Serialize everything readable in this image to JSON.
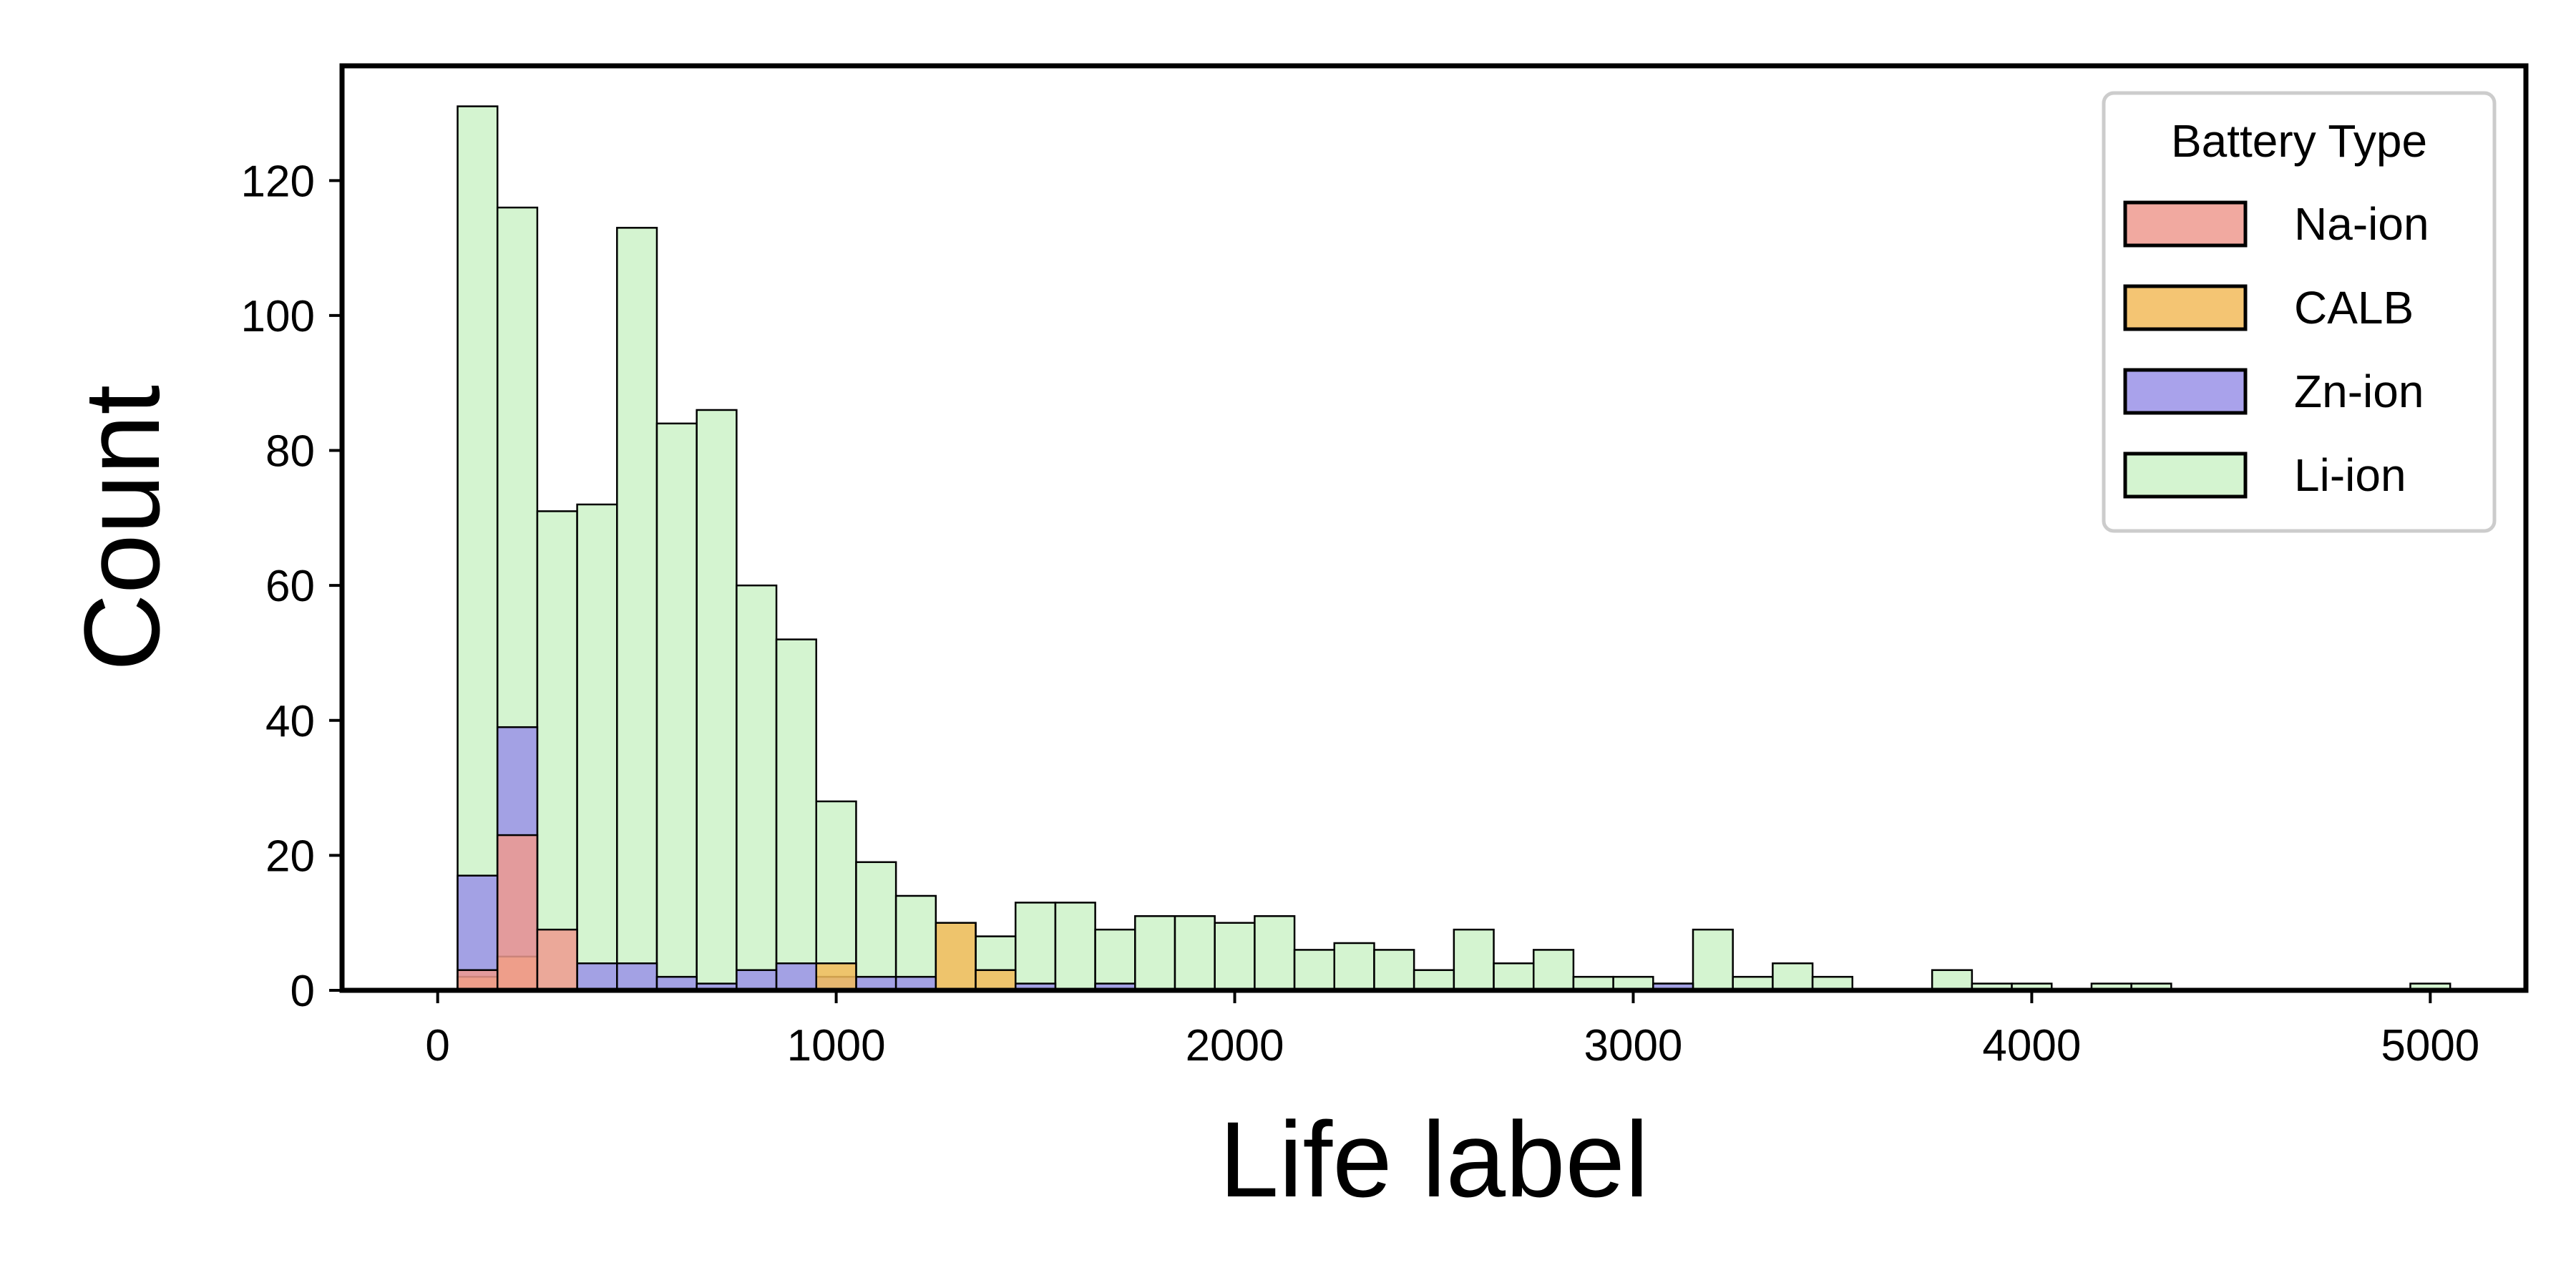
{
  "chart_data": {
    "type": "bar",
    "subtype": "overlaid-histogram",
    "title": "",
    "xlabel": "Life label",
    "ylabel": "Count",
    "xlim": [
      -240,
      5240
    ],
    "ylim": [
      0,
      137
    ],
    "x_ticks": [
      0,
      1000,
      2000,
      3000,
      4000,
      5000
    ],
    "y_ticks": [
      0,
      20,
      40,
      60,
      80,
      100,
      120
    ],
    "grid": false,
    "legend": {
      "title": "Battery Type",
      "position": "top-right"
    },
    "bin_edges": [
      50,
      150,
      250,
      350,
      450,
      550,
      650,
      750,
      850,
      950,
      1050,
      1150,
      1250,
      1350,
      1450,
      1550,
      1650,
      1750,
      1850,
      1950,
      2050,
      2150,
      2250,
      2350,
      2450,
      2550,
      2650,
      2750,
      2850,
      2950,
      3050,
      3150,
      3250,
      3350,
      3450,
      3550,
      3650,
      3750,
      3850,
      3950,
      4050,
      4150,
      4250,
      4350,
      4450,
      4550,
      4650,
      4750,
      4850,
      4950,
      5050
    ],
    "series": [
      {
        "name": "Li-ion",
        "color": "#cdf2c8",
        "values": [
          131,
          116,
          71,
          72,
          113,
          84,
          86,
          60,
          52,
          28,
          19,
          14,
          10,
          8,
          13,
          13,
          9,
          11,
          11,
          10,
          11,
          6,
          7,
          6,
          3,
          9,
          4,
          6,
          2,
          2,
          1,
          9,
          2,
          4,
          2,
          0,
          0,
          3,
          1,
          1,
          0,
          1,
          1,
          0,
          0,
          0,
          0,
          0,
          0,
          1
        ]
      },
      {
        "name": "Zn-ion",
        "color": "#9a92e8",
        "values": [
          17,
          39,
          0,
          4,
          4,
          2,
          1,
          3,
          4,
          2,
          2,
          2,
          0,
          0,
          1,
          0,
          1,
          0,
          0,
          0,
          0,
          0,
          0,
          0,
          0,
          0,
          0,
          0,
          0,
          0,
          1,
          0,
          0,
          0,
          0,
          0,
          0,
          0,
          0,
          0,
          0,
          0,
          0,
          0,
          0,
          0,
          0,
          0,
          0,
          0
        ]
      },
      {
        "name": "CALB",
        "color": "#f2bb5b",
        "values": [
          2,
          5,
          0,
          0,
          0,
          0,
          0,
          0,
          0,
          4,
          0,
          0,
          10,
          3,
          0,
          0,
          0,
          0,
          0,
          0,
          0,
          0,
          0,
          0,
          0,
          0,
          0,
          0,
          0,
          0,
          0,
          0,
          0,
          0,
          0,
          0,
          0,
          0,
          0,
          0,
          0,
          0,
          0,
          0,
          0,
          0,
          0,
          0,
          0,
          0
        ]
      },
      {
        "name": "Na-ion",
        "color": "#ef9a8f",
        "values": [
          3,
          23,
          9,
          0,
          0,
          0,
          0,
          0,
          0,
          0,
          0,
          0,
          0,
          0,
          0,
          0,
          0,
          0,
          0,
          0,
          0,
          0,
          0,
          0,
          0,
          0,
          0,
          0,
          0,
          0,
          0,
          0,
          0,
          0,
          0,
          0,
          0,
          0,
          0,
          0,
          0,
          0,
          0,
          0,
          0,
          0,
          0,
          0,
          0,
          0
        ]
      }
    ],
    "legend_order": [
      "Na-ion",
      "CALB",
      "Zn-ion",
      "Li-ion"
    ]
  }
}
